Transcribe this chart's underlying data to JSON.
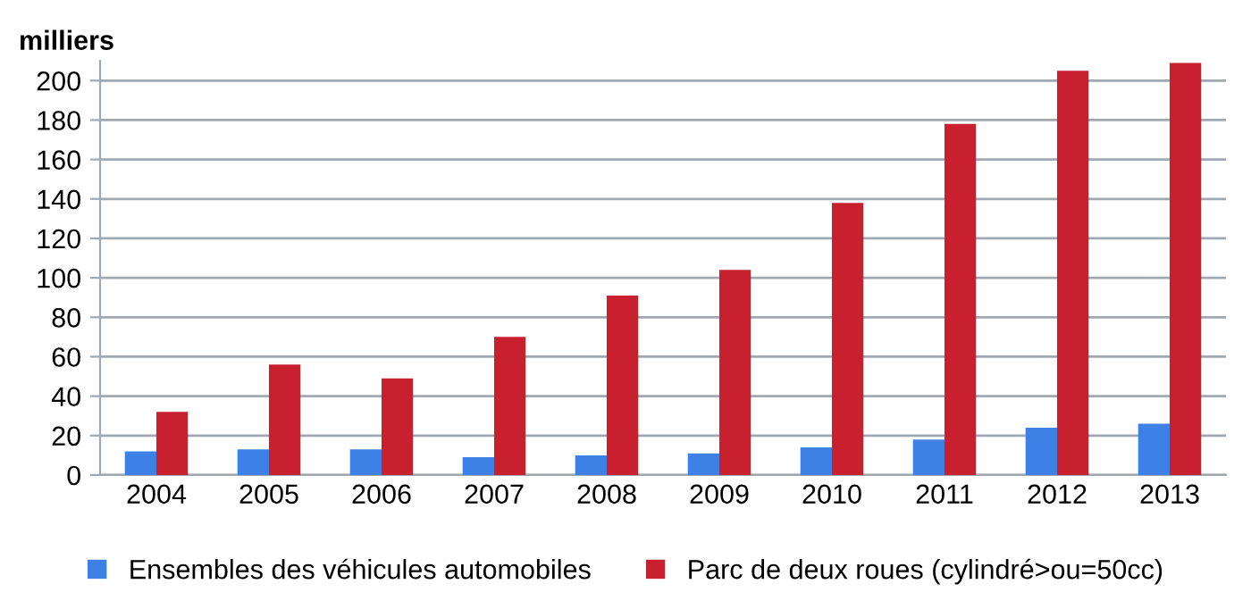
{
  "chart_data": {
    "type": "bar",
    "ylabel": "milliers",
    "categories": [
      "2004",
      "2005",
      "2006",
      "2007",
      "2008",
      "2009",
      "2010",
      "2011",
      "2012",
      "2013"
    ],
    "series": [
      {
        "name": "Ensembles des véhicules automobiles",
        "color": "#3d80e6",
        "values": [
          12,
          13,
          13,
          9,
          10,
          11,
          14,
          18,
          24,
          26
        ]
      },
      {
        "name": "Parc de deux roues (cylindré>ou=50cc)",
        "color": "#c8202e",
        "values": [
          32,
          56,
          49,
          70,
          91,
          104,
          138,
          178,
          205,
          209
        ]
      }
    ],
    "ylim": [
      0,
      210
    ],
    "yticks": [
      0,
      20,
      40,
      60,
      80,
      100,
      120,
      140,
      160,
      180,
      200
    ],
    "grid": "y",
    "legend": "bottom"
  }
}
